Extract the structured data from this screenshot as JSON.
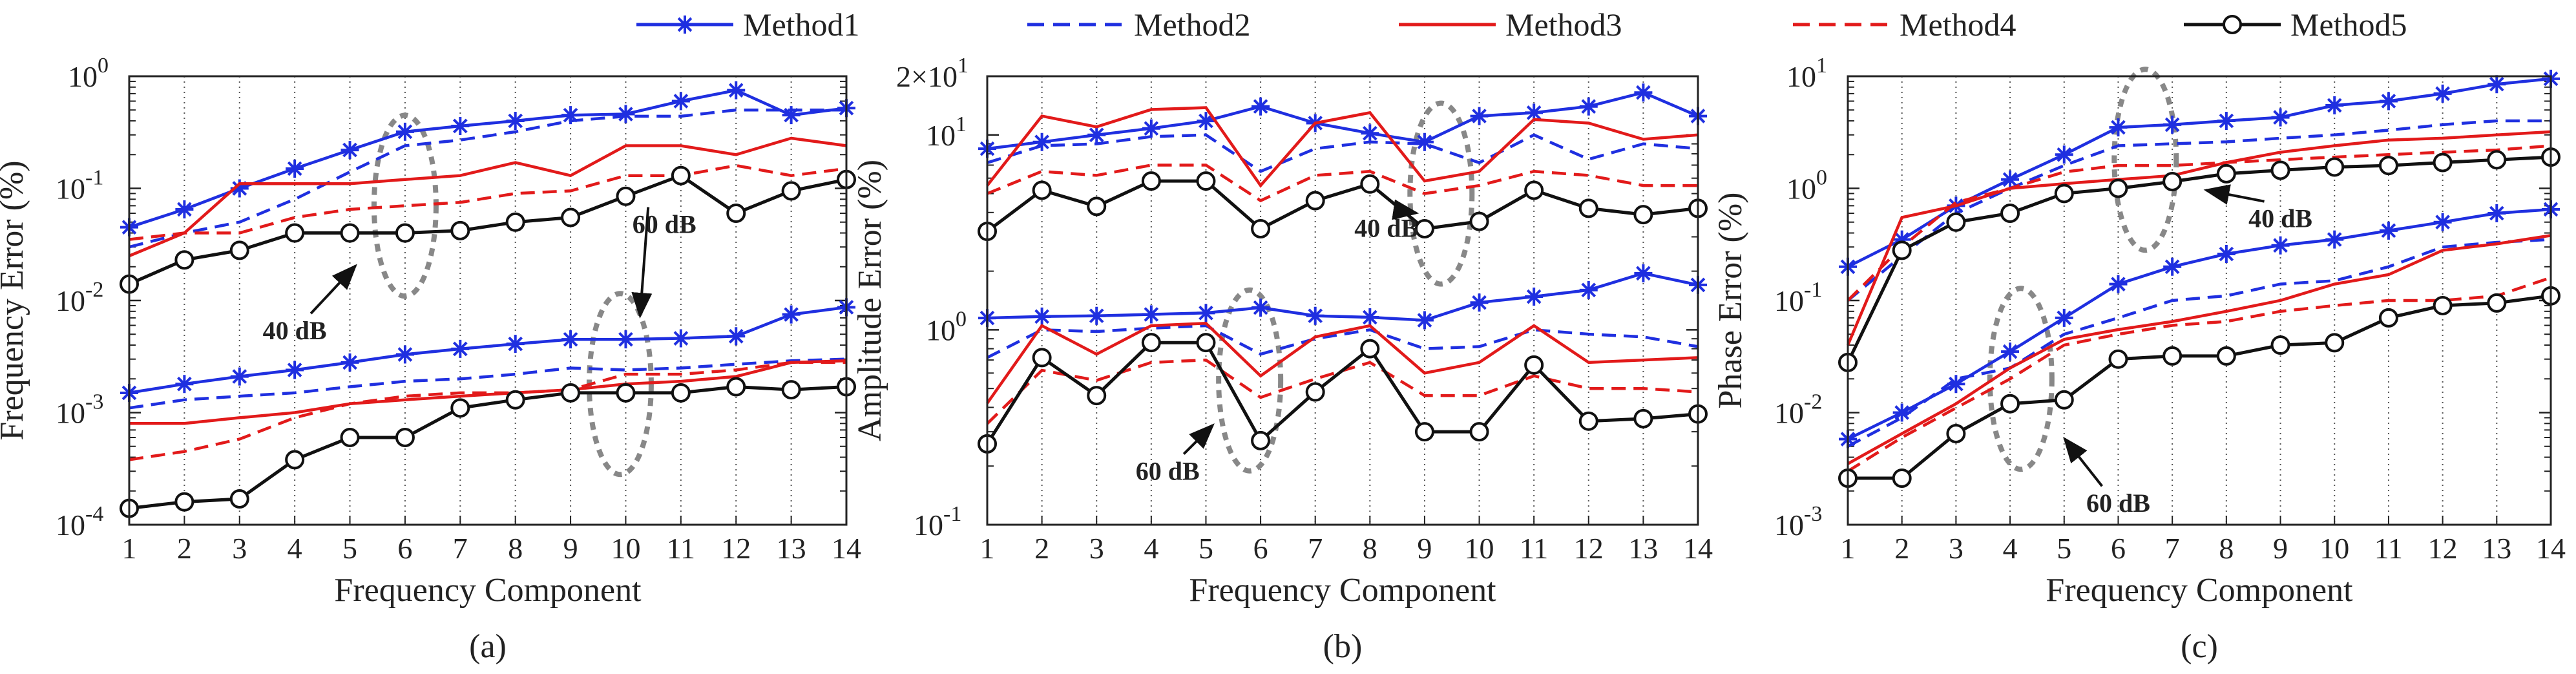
{
  "legend": [
    {
      "name": "Method1",
      "color": "#1f2fe0",
      "dash": "solid",
      "marker": "star"
    },
    {
      "name": "Method2",
      "color": "#1f2fe0",
      "dash": "dashed",
      "marker": "none"
    },
    {
      "name": "Method3",
      "color": "#e21a1a",
      "dash": "solid",
      "marker": "none"
    },
    {
      "name": "Method4",
      "color": "#e21a1a",
      "dash": "dashed",
      "marker": "none"
    },
    {
      "name": "Method5",
      "color": "#111111",
      "dash": "solid",
      "marker": "circle"
    }
  ],
  "chart_data": [
    {
      "type": "line",
      "caption": "(a)",
      "ylabel": "Frequency Error (%)",
      "xlabel": "Frequency Component",
      "x": [
        1,
        2,
        3,
        4,
        5,
        6,
        7,
        8,
        9,
        10,
        11,
        12,
        13,
        14
      ],
      "yscale": "log",
      "ylim": [
        0.0001,
        1
      ],
      "yticks": [
        {
          "base": "10",
          "exp": "0"
        },
        {
          "base": "10",
          "exp": "-1"
        },
        {
          "base": "10",
          "exp": "-2"
        },
        {
          "base": "10",
          "exp": "-3"
        },
        {
          "base": "10",
          "exp": "-4"
        }
      ],
      "annotations": [
        {
          "text": "40 dB",
          "x": 4.0,
          "y": 0.0045
        },
        {
          "text": "60 dB",
          "x": 10.7,
          "y": 0.04
        }
      ],
      "ellipses": [
        {
          "cx": 6.0,
          "cy": 0.07
        },
        {
          "cx": 9.9,
          "cy": 0.0018
        }
      ],
      "series": [
        {
          "name": "Method1",
          "group": "40 dB",
          "values": [
            0.045,
            0.065,
            0.1,
            0.15,
            0.22,
            0.32,
            0.36,
            0.4,
            0.45,
            0.46,
            0.6,
            0.75,
            0.45,
            0.52
          ]
        },
        {
          "name": "Method2",
          "group": "40 dB",
          "values": [
            0.03,
            0.04,
            0.05,
            0.08,
            0.14,
            0.24,
            0.27,
            0.32,
            0.4,
            0.44,
            0.44,
            0.5,
            0.5,
            0.5
          ]
        },
        {
          "name": "Method3",
          "group": "40 dB",
          "values": [
            0.025,
            0.04,
            0.11,
            0.11,
            0.11,
            0.12,
            0.13,
            0.17,
            0.13,
            0.24,
            0.24,
            0.2,
            0.28,
            0.24
          ]
        },
        {
          "name": "Method4",
          "group": "40 dB",
          "values": [
            0.035,
            0.04,
            0.04,
            0.055,
            0.065,
            0.07,
            0.075,
            0.09,
            0.095,
            0.13,
            0.13,
            0.16,
            0.13,
            0.15
          ]
        },
        {
          "name": "Method5",
          "group": "40 dB",
          "values": [
            0.014,
            0.023,
            0.028,
            0.04,
            0.04,
            0.04,
            0.042,
            0.05,
            0.055,
            0.085,
            0.13,
            0.06,
            0.095,
            0.12
          ]
        },
        {
          "name": "Method1",
          "group": "60 dB",
          "values": [
            0.0015,
            0.0018,
            0.0021,
            0.0024,
            0.0028,
            0.0033,
            0.0037,
            0.0041,
            0.0045,
            0.0045,
            0.0046,
            0.0048,
            0.0075,
            0.0087
          ]
        },
        {
          "name": "Method2",
          "group": "60 dB",
          "values": [
            0.0011,
            0.0013,
            0.0014,
            0.0015,
            0.0017,
            0.0019,
            0.002,
            0.0022,
            0.0025,
            0.0024,
            0.0025,
            0.0027,
            0.0029,
            0.003
          ]
        },
        {
          "name": "Method3",
          "group": "60 dB",
          "values": [
            0.0008,
            0.0008,
            0.0009,
            0.001,
            0.0012,
            0.0013,
            0.0014,
            0.0015,
            0.0016,
            0.0018,
            0.0019,
            0.0021,
            0.0028,
            0.0029
          ]
        },
        {
          "name": "Method4",
          "group": "60 dB",
          "values": [
            0.00038,
            0.00045,
            0.00058,
            0.0009,
            0.0012,
            0.0014,
            0.0015,
            0.0015,
            0.0016,
            0.0022,
            0.0022,
            0.0024,
            0.0028,
            0.0028
          ]
        },
        {
          "name": "Method5",
          "group": "60 dB",
          "values": [
            0.00014,
            0.00016,
            0.00017,
            0.00038,
            0.0006,
            0.0006,
            0.0011,
            0.0013,
            0.0015,
            0.0015,
            0.0015,
            0.0017,
            0.0016,
            0.0017
          ]
        }
      ]
    },
    {
      "type": "line",
      "caption": "(b)",
      "ylabel": "Amplitude Error (%)",
      "xlabel": "Frequency Component",
      "x": [
        1,
        2,
        3,
        4,
        5,
        6,
        7,
        8,
        9,
        10,
        11,
        12,
        13,
        14
      ],
      "yscale": "log",
      "ylim": [
        0.1,
        20
      ],
      "yticks": [
        {
          "base": "2×10",
          "exp": "1"
        },
        {
          "base": "10",
          "exp": "1"
        },
        {
          "base": "10",
          "exp": "0"
        },
        {
          "base": "10",
          "exp": "-1"
        }
      ],
      "annotations": [
        {
          "text": "40 dB",
          "x": 8.3,
          "y": 3.0
        },
        {
          "text": "60 dB",
          "x": 4.3,
          "y": 0.17
        }
      ],
      "ellipses": [
        {
          "cx": 9.3,
          "cy": 5.0
        },
        {
          "cx": 5.8,
          "cy": 0.55
        }
      ],
      "series": [
        {
          "name": "Method1",
          "group": "40 dB",
          "values": [
            8.5,
            9.2,
            10.0,
            10.8,
            11.8,
            14.0,
            11.5,
            10.2,
            9.2,
            12.5,
            13.0,
            14.0,
            16.5,
            12.5
          ]
        },
        {
          "name": "Method2",
          "group": "40 dB",
          "values": [
            7.2,
            8.8,
            9.0,
            9.8,
            10.0,
            6.5,
            8.5,
            9.2,
            9.0,
            7.2,
            10.0,
            7.5,
            9.0,
            8.5
          ]
        },
        {
          "name": "Method3",
          "group": "40 dB",
          "values": [
            5.5,
            12.5,
            11.0,
            13.5,
            13.8,
            5.5,
            11.5,
            13.0,
            5.8,
            6.5,
            12.0,
            11.5,
            9.5,
            10.0
          ]
        },
        {
          "name": "Method4",
          "group": "40 dB",
          "values": [
            5.0,
            6.5,
            6.2,
            7.0,
            7.0,
            4.6,
            6.2,
            6.5,
            5.0,
            5.5,
            6.5,
            6.2,
            5.5,
            5.5
          ]
        },
        {
          "name": "Method5",
          "group": "40 dB",
          "values": [
            3.2,
            5.2,
            4.3,
            5.8,
            5.8,
            3.3,
            4.6,
            5.6,
            3.3,
            3.6,
            5.2,
            4.2,
            3.9,
            4.2
          ]
        },
        {
          "name": "Method1",
          "group": "60 dB",
          "values": [
            1.15,
            1.17,
            1.18,
            1.2,
            1.22,
            1.3,
            1.18,
            1.16,
            1.12,
            1.38,
            1.48,
            1.6,
            1.95,
            1.7
          ]
        },
        {
          "name": "Method2",
          "group": "60 dB",
          "values": [
            0.72,
            1.0,
            0.98,
            1.02,
            1.05,
            0.75,
            0.9,
            1.0,
            0.8,
            0.82,
            1.0,
            0.95,
            0.92,
            0.82
          ]
        },
        {
          "name": "Method3",
          "group": "60 dB",
          "values": [
            0.42,
            1.05,
            0.75,
            1.05,
            1.08,
            0.58,
            0.92,
            1.05,
            0.6,
            0.68,
            1.05,
            0.68,
            0.7,
            0.72
          ]
        },
        {
          "name": "Method4",
          "group": "60 dB",
          "values": [
            0.33,
            0.62,
            0.55,
            0.68,
            0.7,
            0.45,
            0.56,
            0.68,
            0.46,
            0.46,
            0.58,
            0.5,
            0.5,
            0.48
          ]
        },
        {
          "name": "Method5",
          "group": "60 dB",
          "values": [
            0.26,
            0.72,
            0.46,
            0.86,
            0.86,
            0.27,
            0.48,
            0.8,
            0.3,
            0.3,
            0.66,
            0.34,
            0.35,
            0.37
          ]
        }
      ]
    },
    {
      "type": "line",
      "caption": "(c)",
      "ylabel": "Phase Error (%)",
      "xlabel": "Frequency Component",
      "x": [
        1,
        2,
        3,
        4,
        5,
        6,
        7,
        8,
        9,
        10,
        11,
        12,
        13,
        14
      ],
      "yscale": "log",
      "ylim": [
        0.001,
        10
      ],
      "yticks": [
        {
          "base": "10",
          "exp": "1"
        },
        {
          "base": "10",
          "exp": "0"
        },
        {
          "base": "10",
          "exp": "-1"
        },
        {
          "base": "10",
          "exp": "-2"
        },
        {
          "base": "10",
          "exp": "-3"
        }
      ],
      "annotations": [
        {
          "text": "40 dB",
          "x": 9.0,
          "y": 0.45
        },
        {
          "text": "60 dB",
          "x": 6.0,
          "y": 0.0013
        }
      ],
      "ellipses": [
        {
          "cx": 6.5,
          "cy": 1.8
        },
        {
          "cx": 4.2,
          "cy": 0.02
        }
      ],
      "series": [
        {
          "name": "Method1",
          "group": "40 dB",
          "values": [
            0.2,
            0.35,
            0.7,
            1.2,
            2.0,
            3.5,
            3.7,
            4.0,
            4.3,
            5.5,
            6.0,
            7.0,
            8.5,
            9.5
          ]
        },
        {
          "name": "Method2",
          "group": "40 dB",
          "values": [
            0.1,
            0.25,
            0.6,
            1.0,
            1.6,
            2.4,
            2.5,
            2.6,
            2.8,
            3.0,
            3.3,
            3.7,
            4.0,
            4.0
          ]
        },
        {
          "name": "Method3",
          "group": "40 dB",
          "values": [
            0.04,
            0.55,
            0.7,
            1.0,
            1.1,
            1.2,
            1.3,
            1.7,
            2.1,
            2.4,
            2.7,
            2.8,
            3.0,
            3.2
          ]
        },
        {
          "name": "Method4",
          "group": "40 dB",
          "values": [
            0.1,
            0.3,
            0.75,
            1.0,
            1.4,
            1.6,
            1.6,
            1.7,
            1.8,
            1.9,
            2.0,
            2.1,
            2.2,
            2.4
          ]
        },
        {
          "name": "Method5",
          "group": "40 dB",
          "values": [
            0.028,
            0.28,
            0.5,
            0.6,
            0.9,
            1.0,
            1.15,
            1.35,
            1.45,
            1.55,
            1.6,
            1.7,
            1.8,
            1.9
          ]
        },
        {
          "name": "Method1",
          "group": "60 dB",
          "values": [
            0.0058,
            0.01,
            0.018,
            0.035,
            0.07,
            0.14,
            0.2,
            0.26,
            0.31,
            0.35,
            0.42,
            0.5,
            0.6,
            0.65
          ]
        },
        {
          "name": "Method2",
          "group": "60 dB",
          "values": [
            0.005,
            0.009,
            0.02,
            0.025,
            0.05,
            0.07,
            0.1,
            0.11,
            0.14,
            0.15,
            0.2,
            0.3,
            0.33,
            0.35
          ]
        },
        {
          "name": "Method3",
          "group": "60 dB",
          "values": [
            0.0035,
            0.0065,
            0.012,
            0.025,
            0.045,
            0.055,
            0.065,
            0.08,
            0.1,
            0.14,
            0.17,
            0.28,
            0.32,
            0.38
          ]
        },
        {
          "name": "Method4",
          "group": "60 dB",
          "values": [
            0.003,
            0.006,
            0.011,
            0.02,
            0.04,
            0.05,
            0.06,
            0.065,
            0.08,
            0.09,
            0.1,
            0.1,
            0.11,
            0.16
          ]
        },
        {
          "name": "Method5",
          "group": "60 dB",
          "values": [
            0.0026,
            0.0026,
            0.0065,
            0.012,
            0.013,
            0.03,
            0.032,
            0.032,
            0.04,
            0.042,
            0.07,
            0.09,
            0.095,
            0.11
          ]
        }
      ]
    }
  ]
}
